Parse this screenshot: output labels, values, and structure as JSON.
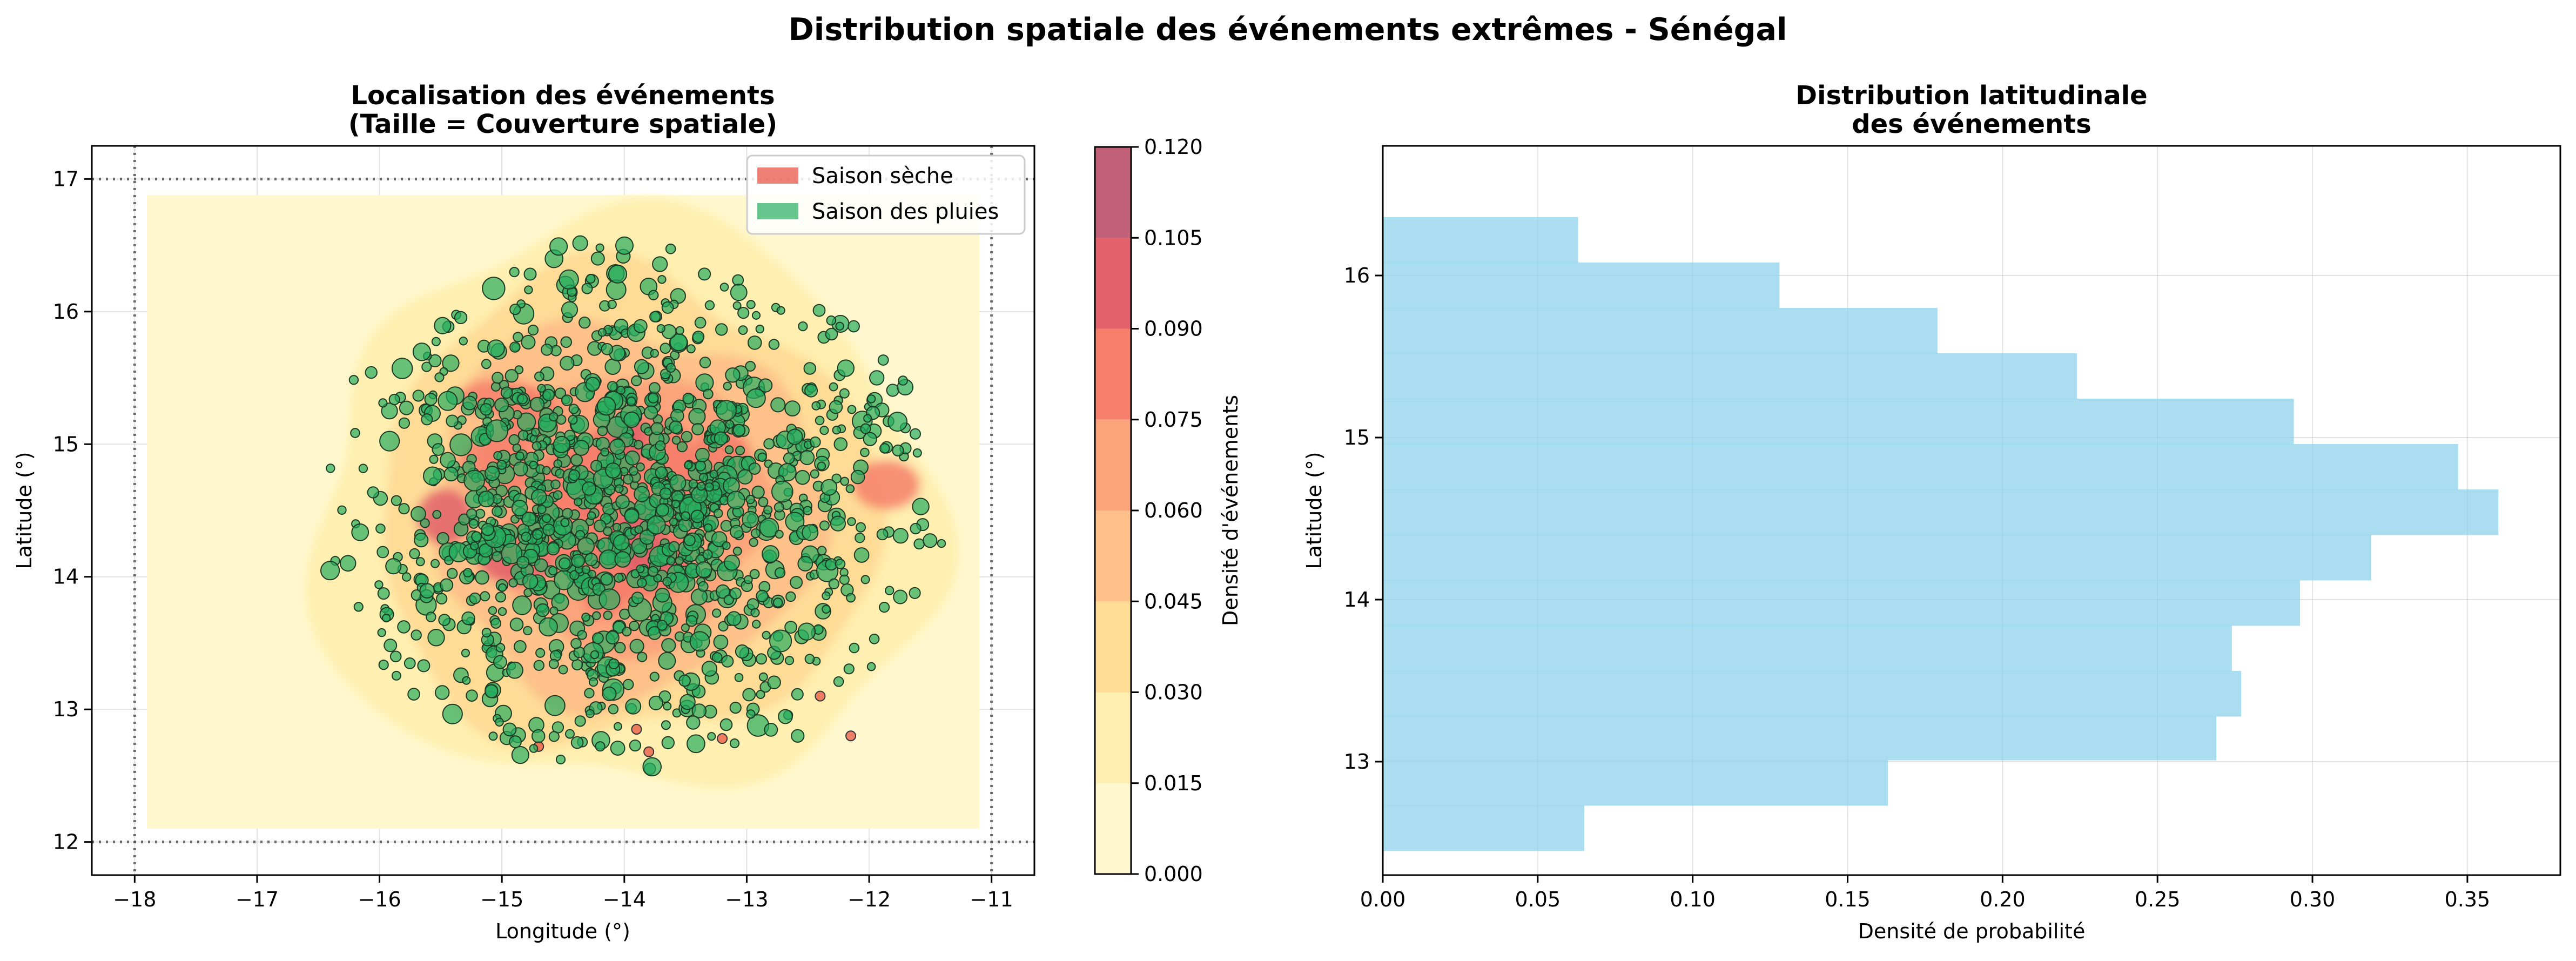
{
  "suptitle": "Distribution spatiale des événements extrêmes - Sénégal",
  "colors": {
    "dry": "#e74c3c",
    "wet": "#27ae60",
    "hist": "#87ceeb",
    "density_levels": [
      "#fff8cf",
      "#ffefb0",
      "#fedc96",
      "#fdc189",
      "#fba47c",
      "#f6806c",
      "#e2616b",
      "#c2607a"
    ]
  },
  "chart_data": [
    {
      "type": "scatter",
      "title": "Localisation des événements\n(Taille = Couverture spatiale)",
      "xlabel": "Longitude (°)",
      "ylabel": "Latitude (°)",
      "xlim": [
        -18.35,
        -10.65
      ],
      "ylim": [
        11.75,
        17.25
      ],
      "xticks": [
        -18,
        -17,
        -16,
        -15,
        -14,
        -13,
        -12,
        -11
      ],
      "xtick_labels": [
        "−18",
        "−17",
        "−16",
        "−15",
        "−14",
        "−13",
        "−12",
        "−11"
      ],
      "yticks": [
        12,
        13,
        14,
        15,
        16,
        17
      ],
      "ytick_labels": [
        "12",
        "13",
        "14",
        "15",
        "16",
        "17"
      ],
      "grid": true,
      "boundary_lines": {
        "lon": [
          -18,
          -11
        ],
        "lat": [
          12,
          17
        ]
      },
      "legend": {
        "position": "upper right",
        "entries": [
          "Saison sèche",
          "Saison des pluies"
        ]
      },
      "density_extent": {
        "lon": [
          -17.9,
          -11.1
        ],
        "lat": [
          12.1,
          16.88
        ]
      },
      "density_center": {
        "lon": -14.0,
        "lat": 14.5
      },
      "colorbar": {
        "label": "Densité d'événements",
        "ticks": [
          0.0,
          0.015,
          0.03,
          0.045,
          0.06,
          0.075,
          0.09,
          0.105,
          0.12
        ],
        "tick_labels": [
          "0.000",
          "0.015",
          "0.030",
          "0.045",
          "0.060",
          "0.075",
          "0.090",
          "0.105",
          "0.120"
        ]
      },
      "series": [
        {
          "name": "Saison sèche",
          "points": [
            [
              -12.15,
              12.8
            ],
            [
              -13.9,
              12.85
            ],
            [
              -13.2,
              12.78
            ],
            [
              -14.7,
              12.72
            ],
            [
              -12.4,
              13.1
            ],
            [
              -13.8,
              12.68
            ]
          ]
        },
        {
          "name": "Saison des pluies",
          "approx_count": 1350,
          "lon_mean": -13.95,
          "lon_sd": 1.15,
          "lat_mean": 14.5,
          "lat_sd": 0.9
        }
      ]
    },
    {
      "type": "bar",
      "orientation": "horizontal",
      "title": "Distribution latitudinale\ndes événements",
      "xlabel": "Densité de probabilité",
      "ylabel": "Latitude (°)",
      "xlim": [
        0.0,
        0.38
      ],
      "ylim": [
        12.3,
        16.8
      ],
      "xticks": [
        0.0,
        0.05,
        0.1,
        0.15,
        0.2,
        0.25,
        0.3,
        0.35
      ],
      "xtick_labels": [
        "0.00",
        "0.05",
        "0.10",
        "0.15",
        "0.20",
        "0.25",
        "0.30",
        "0.35"
      ],
      "yticks": [
        13,
        14,
        15,
        16
      ],
      "ytick_labels": [
        "13",
        "14",
        "15",
        "16"
      ],
      "grid": true,
      "bins": [
        {
          "lat_min": 12.45,
          "lat_max": 12.73,
          "density": 0.065
        },
        {
          "lat_min": 12.73,
          "lat_max": 13.01,
          "density": 0.163
        },
        {
          "lat_min": 13.01,
          "lat_max": 13.28,
          "density": 0.269
        },
        {
          "lat_min": 13.28,
          "lat_max": 13.56,
          "density": 0.277
        },
        {
          "lat_min": 13.56,
          "lat_max": 13.84,
          "density": 0.274
        },
        {
          "lat_min": 13.84,
          "lat_max": 14.12,
          "density": 0.296
        },
        {
          "lat_min": 14.12,
          "lat_max": 14.4,
          "density": 0.319
        },
        {
          "lat_min": 14.4,
          "lat_max": 14.68,
          "density": 0.36
        },
        {
          "lat_min": 14.68,
          "lat_max": 14.96,
          "density": 0.347
        },
        {
          "lat_min": 14.96,
          "lat_max": 15.24,
          "density": 0.294
        },
        {
          "lat_min": 15.24,
          "lat_max": 15.52,
          "density": 0.224
        },
        {
          "lat_min": 15.52,
          "lat_max": 15.8,
          "density": 0.179
        },
        {
          "lat_min": 15.8,
          "lat_max": 16.08,
          "density": 0.128
        },
        {
          "lat_min": 16.08,
          "lat_max": 16.36,
          "density": 0.063
        }
      ]
    }
  ]
}
